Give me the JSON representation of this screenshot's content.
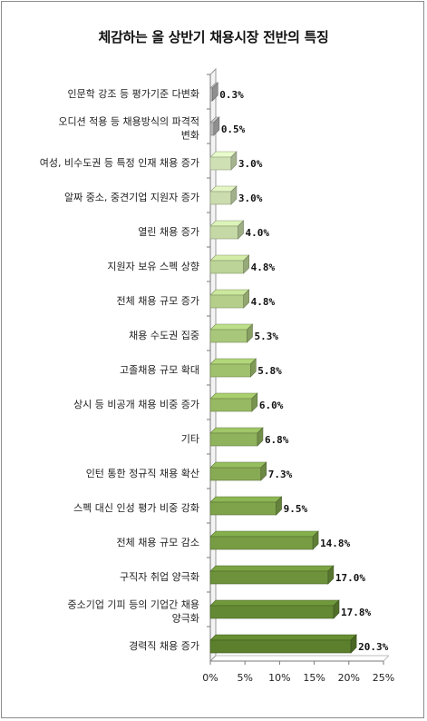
{
  "chart_data": {
    "type": "bar",
    "orientation": "horizontal",
    "style": "3d",
    "title": "체감하는 올 상반기 채용시장 전반의 특징",
    "xlabel": "",
    "ylabel": "",
    "xlim": [
      0,
      25
    ],
    "tick_labels": [
      "0%",
      "5%",
      "10%",
      "15%",
      "20%",
      "25%"
    ],
    "grid": false,
    "legend": "none",
    "categories": [
      [
        "인문학 강조 등 평가기준 다변화"
      ],
      [
        "오디션 적용 등 채용방식의 파격적",
        "변화"
      ],
      [
        "여성, 비수도권 등 특정 인재 채용 증가"
      ],
      [
        "알짜 중소, 중견기업 지원자 증가"
      ],
      [
        "열린 채용 증가"
      ],
      [
        "지원자 보유 스펙 상향"
      ],
      [
        "전체 채용 규모 증가"
      ],
      [
        "채용 수도권 집중"
      ],
      [
        "고졸채용 규모 확대"
      ],
      [
        "상시 등 비공개 채용 비중 증가"
      ],
      [
        "기타"
      ],
      [
        "인턴 통한 정규직 채용 확산"
      ],
      [
        "스펙 대신 인성 평가 비중 강화"
      ],
      [
        "전체 채용 규모 감소"
      ],
      [
        "구직자 취업 양극화"
      ],
      [
        "중소기업 기피 등의 기업간 채용",
        "양극화"
      ],
      [
        "경력직 채용 증가"
      ]
    ],
    "values": [
      0.3,
      0.5,
      3.0,
      3.0,
      4.0,
      4.8,
      4.8,
      5.3,
      5.8,
      6.0,
      6.8,
      7.3,
      9.5,
      14.8,
      17.0,
      17.8,
      20.3
    ],
    "value_labels": [
      "0.3%",
      "0.5%",
      "3.0%",
      "3.0%",
      "4.0%",
      "4.8%",
      "4.8%",
      "5.3%",
      "5.8%",
      "6.0%",
      "6.8%",
      "7.3%",
      "9.5%",
      "14.8%",
      "17.0%",
      "17.8%",
      "20.3%"
    ],
    "bar_colors": [
      "#b3b3b3",
      "#b3b3b3",
      "#cfe0b5",
      "#cbdcae",
      "#c4d9a5",
      "#bcd497",
      "#b5cf8b",
      "#a9c77a",
      "#9fc06c",
      "#97b963",
      "#8fb25c",
      "#87aa54",
      "#7ea34b",
      "#779c44",
      "#6e923c",
      "#648935",
      "#5c7f2d"
    ]
  }
}
